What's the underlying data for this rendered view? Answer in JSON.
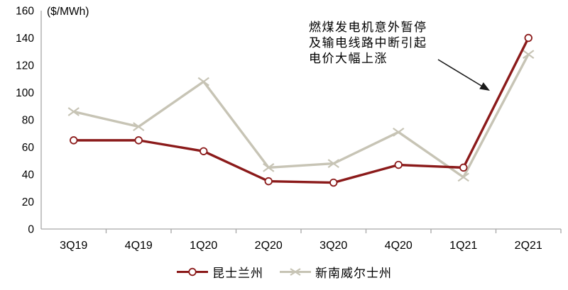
{
  "chart_data": {
    "type": "line",
    "title": "",
    "ylabel": "($/MWh)",
    "xlabel": "",
    "categories": [
      "3Q19",
      "4Q19",
      "1Q20",
      "2Q20",
      "3Q20",
      "4Q20",
      "1Q21",
      "2Q21"
    ],
    "series": [
      {
        "name": "昆士兰州",
        "marker": "circle",
        "color": "#8B1A1A",
        "values": [
          65,
          65,
          57,
          35,
          34,
          47,
          45,
          140
        ]
      },
      {
        "name": "新南威尔士州",
        "marker": "x",
        "color": "#C7C4B5",
        "values": [
          86,
          75,
          108,
          45,
          48,
          71,
          38,
          128
        ]
      }
    ],
    "ylim": [
      0,
      160
    ],
    "ytick_step": 20,
    "grid": false,
    "legend_position": "bottom",
    "annotation": {
      "lines": [
        "燃煤发电机意外暂停",
        "及输电线路中断引起",
        "电价大幅上涨"
      ]
    }
  },
  "colors": {
    "axis": "#A6A6A6",
    "text": "#000000",
    "arrow": "#1A1A1A",
    "marker_fill": "#FFFFFF"
  }
}
